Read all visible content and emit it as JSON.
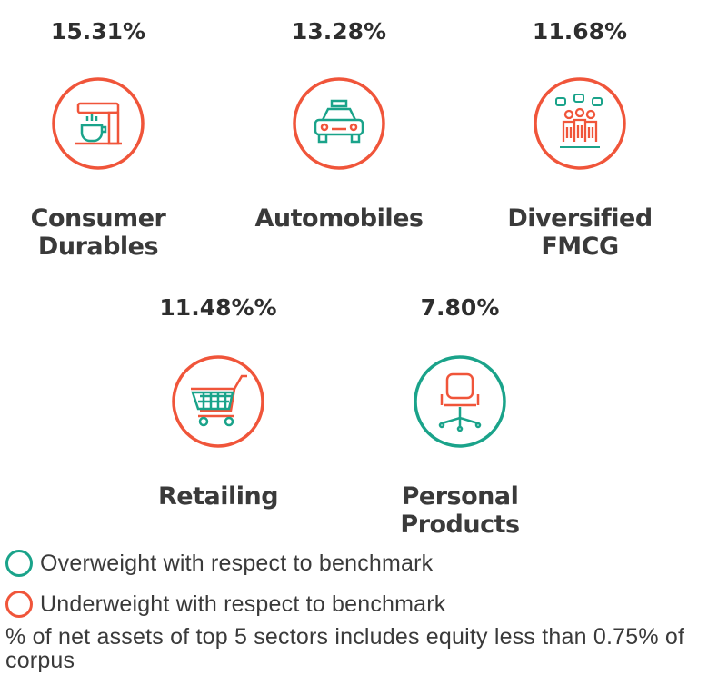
{
  "colors": {
    "overweight": "#1aa38a",
    "underweight": "#f0553a",
    "text": "#3a3a3a"
  },
  "sectors": [
    {
      "name_line1": "Consumer",
      "name_line2": "Durables",
      "percent": "15.31%",
      "icon": "coffee-maker-icon",
      "weight": "underweight"
    },
    {
      "name_line1": "Automobiles",
      "name_line2": "",
      "percent": "13.28%",
      "icon": "car-icon",
      "weight": "underweight"
    },
    {
      "name_line1": "Diversified",
      "name_line2": "FMCG",
      "percent": "11.68%",
      "icon": "consumers-group-icon",
      "weight": "underweight"
    },
    {
      "name_line1": "Retailing",
      "name_line2": "",
      "percent": "11.48%%",
      "icon": "shopping-cart-icon",
      "weight": "underweight"
    },
    {
      "name_line1": "Personal",
      "name_line2": "Products",
      "percent": "7.80%",
      "icon": "office-chair-icon",
      "weight": "overweight"
    }
  ],
  "legend": {
    "overweight_label": "Overweight with respect to benchmark",
    "underweight_label": "Underweight with respect to benchmark"
  },
  "footnote": "% of net assets of top 5 sectors includes equity less than 0.75% of corpus"
}
